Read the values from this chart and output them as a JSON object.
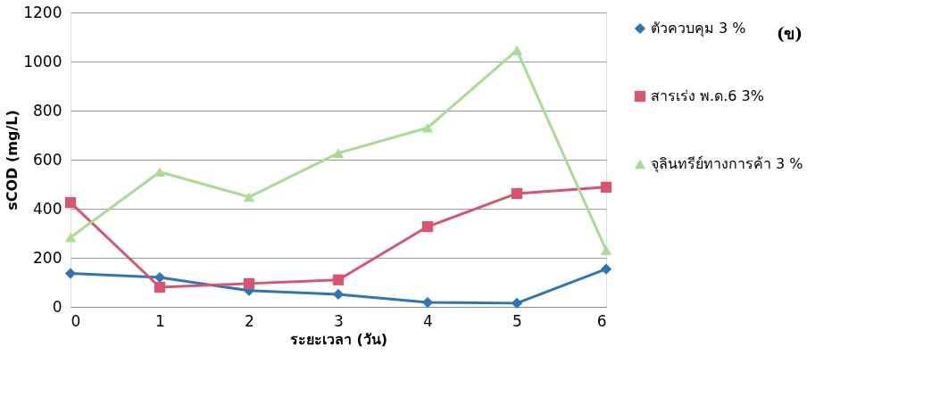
{
  "chart_data": {
    "type": "line",
    "xlabel": "ระยะเวลา (วัน)",
    "ylabel": "sCOD (mg/L)",
    "annotations": [
      "(ข)"
    ],
    "x": [
      0,
      1,
      2,
      3,
      4,
      5,
      6
    ],
    "xlim": [
      0,
      6
    ],
    "xticks": [
      0,
      1,
      2,
      3,
      4,
      5,
      6
    ],
    "ylim": [
      0,
      1200
    ],
    "yticks": [
      0,
      200,
      400,
      600,
      800,
      1000,
      1200
    ],
    "grid": "y",
    "legend": "right",
    "line_style": "solid",
    "series": [
      {
        "name": "ตัวควบคุม 3 %",
        "color": "#2e75b6",
        "marker": "diamond",
        "values": [
          136,
          120,
          66,
          51,
          18,
          15,
          154
        ]
      },
      {
        "name": "สารเร่ง พ.ด.6 3%",
        "color": "#d9546e",
        "marker": "square",
        "values": [
          425,
          80,
          95,
          110,
          327,
          462,
          488
        ]
      },
      {
        "name": "จุลินทรีย์ทางการค้า 3 %",
        "color": "#a9dc93",
        "marker": "triangle",
        "values": [
          283,
          550,
          448,
          627,
          730,
          1046,
          231
        ]
      }
    ]
  }
}
